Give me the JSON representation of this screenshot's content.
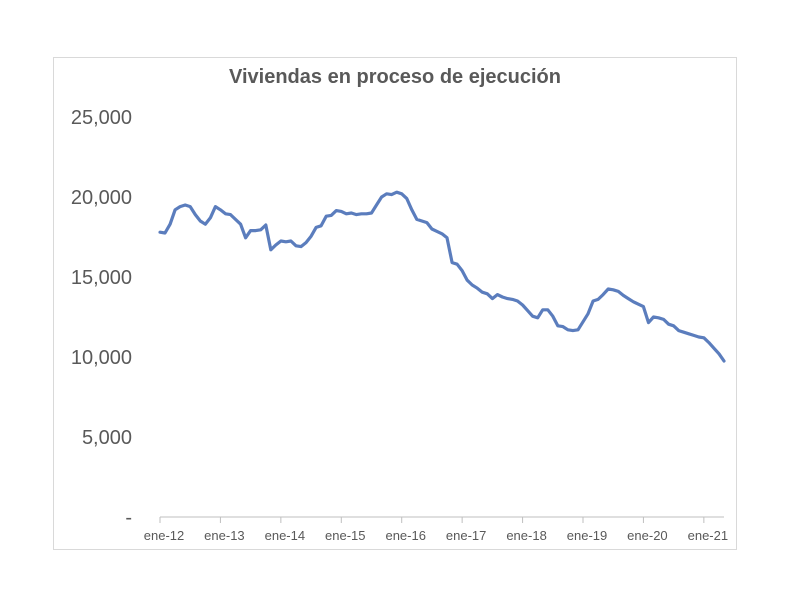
{
  "chart_data": {
    "type": "line",
    "title": "Viviendas en proceso de ejecución",
    "xlabel": "",
    "ylabel": "",
    "ylim": [
      0,
      25000
    ],
    "yticks": [
      "-",
      "5,000",
      "10,000",
      "15,000",
      "20,000",
      "25,000"
    ],
    "ytick_values": [
      0,
      5000,
      10000,
      15000,
      20000,
      25000
    ],
    "xtick_labels": [
      "ene-12",
      "ene-13",
      "ene-14",
      "ene-15",
      "ene-16",
      "ene-17",
      "ene-18",
      "ene-19",
      "ene-20",
      "ene-21"
    ],
    "x_start": "2012-01",
    "grid": false,
    "legend": "none",
    "series": [
      {
        "color": "#5b7dbd",
        "values": [
          17800,
          17750,
          18300,
          19200,
          19400,
          19500,
          19400,
          18900,
          18500,
          18300,
          18700,
          19400,
          19200,
          18950,
          18900,
          18600,
          18300,
          17450,
          17900,
          17900,
          17950,
          18250,
          16700,
          17000,
          17250,
          17200,
          17250,
          16950,
          16900,
          17150,
          17550,
          18100,
          18200,
          18800,
          18850,
          19150,
          19100,
          18950,
          19000,
          18900,
          18950,
          18950,
          19000,
          19500,
          20000,
          20200,
          20150,
          20300,
          20200,
          19900,
          19200,
          18600,
          18500,
          18400,
          18000,
          17850,
          17700,
          17450,
          15900,
          15800,
          15400,
          14800,
          14500,
          14300,
          14050,
          13950,
          13650,
          13900,
          13750,
          13650,
          13600,
          13500,
          13250,
          12900,
          12550,
          12450,
          12950,
          12950,
          12550,
          11950,
          11900,
          11700,
          11650,
          11700,
          12200,
          12700,
          13500,
          13600,
          13900,
          14250,
          14200,
          14100,
          13850,
          13650,
          13450,
          13300,
          13150,
          12150,
          12500,
          12450,
          12350,
          12050,
          11950,
          11650,
          11550,
          11450,
          11350,
          11250,
          11200,
          10900,
          10550,
          10200,
          9750
        ]
      }
    ]
  }
}
